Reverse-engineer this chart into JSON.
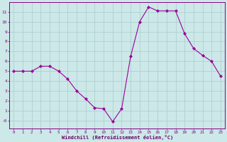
{
  "x": [
    0,
    1,
    2,
    3,
    4,
    5,
    6,
    7,
    8,
    9,
    10,
    11,
    12,
    13,
    14,
    15,
    16,
    17,
    18,
    19,
    20,
    21,
    22,
    23
  ],
  "y": [
    5.0,
    5.0,
    5.0,
    5.5,
    5.5,
    5.0,
    4.2,
    3.0,
    2.2,
    1.3,
    1.2,
    -0.1,
    1.2,
    6.5,
    10.0,
    11.5,
    11.1,
    11.1,
    11.1,
    8.8,
    7.3,
    6.6,
    6.0,
    4.5
  ],
  "line_color": "#990099",
  "marker": "D",
  "marker_size": 2,
  "bg_color": "#cce8e8",
  "grid_color": "#aacccc",
  "xlabel": "Windchill (Refroidissement éolien,°C)",
  "xlabel_color": "#660066",
  "ytick_labels": [
    "-0",
    "1",
    "2",
    "3",
    "4",
    "5",
    "6",
    "7",
    "8",
    "9",
    "10",
    "11"
  ],
  "ytick_vals": [
    0,
    1,
    2,
    3,
    4,
    5,
    6,
    7,
    8,
    9,
    10,
    11
  ],
  "xtick_vals": [
    0,
    1,
    2,
    3,
    4,
    5,
    6,
    7,
    8,
    9,
    10,
    11,
    12,
    13,
    14,
    15,
    16,
    17,
    18,
    19,
    20,
    21,
    22,
    23
  ],
  "ylim": [
    -0.8,
    12.0
  ],
  "xlim": [
    -0.5,
    23.5
  ],
  "tick_color": "#880088",
  "spine_color": "#880088"
}
